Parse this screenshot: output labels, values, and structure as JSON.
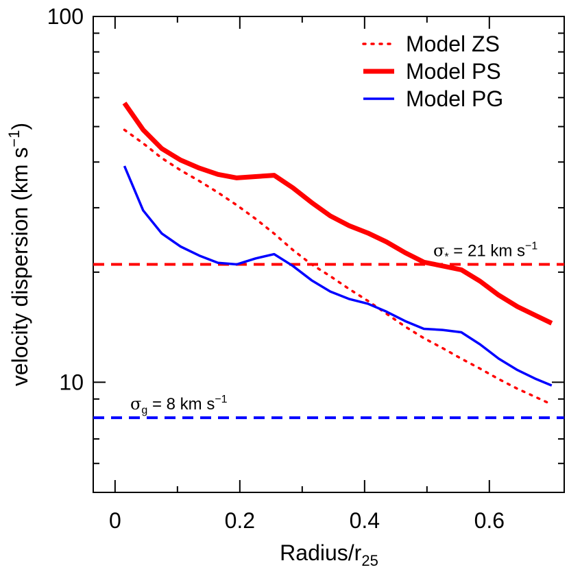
{
  "chart_data": {
    "type": "line",
    "xlabel": "Radius/r",
    "xlabel_sub": "25",
    "ylabel": "velocity dispersion (km s",
    "ylabel_sup": "−1",
    "ylabel_close": ")",
    "xlim": [
      -0.035,
      0.72
    ],
    "ylim": [
      5,
      100
    ],
    "y_scale": "log",
    "x_ticks": [
      0,
      0.2,
      0.4,
      0.6
    ],
    "x_tick_labels": [
      "0",
      "0.2",
      "0.4",
      "0.6"
    ],
    "y_ticks": [
      10,
      100
    ],
    "y_tick_labels": [
      "10",
      "100"
    ],
    "legend_position": "top-right",
    "series": [
      {
        "name": "Model ZS",
        "style": "dotted",
        "color": "#ff0000",
        "x": [
          0.015,
          0.045,
          0.075,
          0.105,
          0.135,
          0.165,
          0.195,
          0.225,
          0.255,
          0.285,
          0.315,
          0.345,
          0.375,
          0.405,
          0.435,
          0.465,
          0.495,
          0.525,
          0.555,
          0.585,
          0.615,
          0.645,
          0.675,
          0.7
        ],
        "y": [
          49,
          45,
          41,
          38,
          35.5,
          33,
          30.5,
          28,
          25.5,
          23,
          21,
          19.5,
          18,
          16.7,
          15.4,
          14.2,
          13.2,
          12.4,
          11.6,
          10.9,
          10.2,
          9.6,
          9.1,
          8.7
        ]
      },
      {
        "name": "Model PS",
        "style": "thick",
        "color": "#ff0000",
        "x": [
          0.015,
          0.045,
          0.075,
          0.105,
          0.135,
          0.165,
          0.195,
          0.225,
          0.255,
          0.285,
          0.315,
          0.345,
          0.375,
          0.405,
          0.435,
          0.465,
          0.495,
          0.525,
          0.555,
          0.585,
          0.615,
          0.645,
          0.675,
          0.7
        ],
        "y": [
          58,
          49,
          43.5,
          40.5,
          38.5,
          37,
          36.2,
          36.5,
          36.8,
          34,
          31,
          28.5,
          26.8,
          25.6,
          24.2,
          22.6,
          21.3,
          20.8,
          20.3,
          18.9,
          17.3,
          16.1,
          15.2,
          14.5
        ]
      },
      {
        "name": "Model PG",
        "style": "solid",
        "color": "#0000ff",
        "x": [
          0.015,
          0.045,
          0.075,
          0.105,
          0.135,
          0.165,
          0.195,
          0.225,
          0.255,
          0.285,
          0.315,
          0.345,
          0.375,
          0.405,
          0.435,
          0.465,
          0.495,
          0.525,
          0.555,
          0.585,
          0.615,
          0.645,
          0.675,
          0.7
        ],
        "y": [
          39,
          29.5,
          25.5,
          23.5,
          22.2,
          21.2,
          21,
          21.8,
          22.4,
          20.8,
          19,
          17.7,
          16.9,
          16.4,
          15.6,
          14.7,
          14,
          13.9,
          13.7,
          12.7,
          11.6,
          10.8,
          10.2,
          9.8
        ]
      }
    ],
    "reference_lines": [
      {
        "y": 21,
        "color": "#ff0000",
        "style": "dashed",
        "label_sym": "σ",
        "label_sub": "*",
        "label_rest": " = 21 km s",
        "label_sup": "−1"
      },
      {
        "y": 8,
        "color": "#0000ff",
        "style": "dashed",
        "label_sym": "σ",
        "label_sub": "g",
        "label_rest": " = 8 km s",
        "label_sup": "−1"
      }
    ]
  }
}
